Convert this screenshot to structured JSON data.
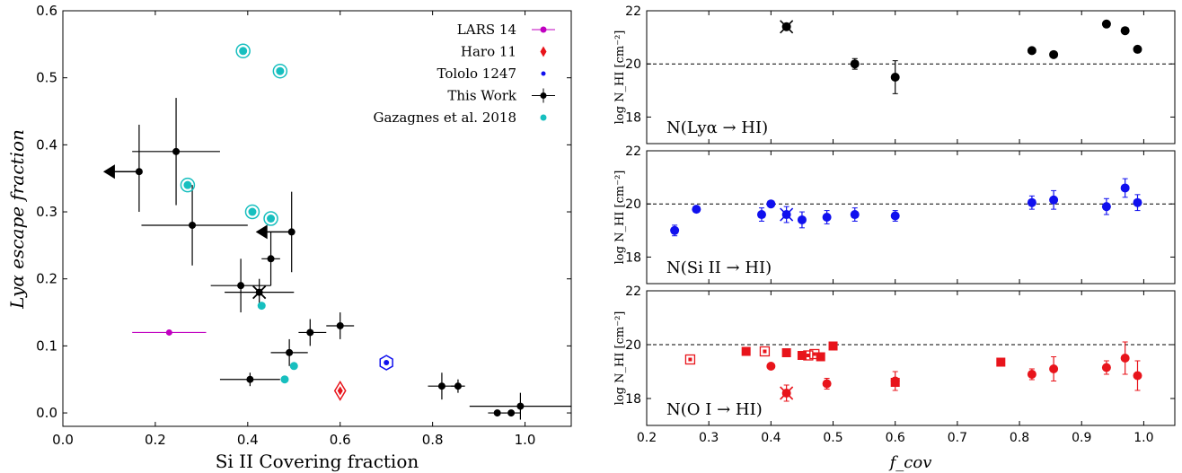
{
  "colors": {
    "black": "#000000",
    "magenta": "#c000c0",
    "red": "#e8141b",
    "blue": "#1010ee",
    "cyan": "#17bfbf"
  },
  "chart_data": [
    {
      "type": "scatter",
      "xlabel": "Si II Covering fraction",
      "ylabel": "Lyα escape fraction",
      "xlim": [
        0.0,
        1.1
      ],
      "ylim": [
        -0.02,
        0.6
      ],
      "xticks": [
        "0.0",
        "0.2",
        "0.4",
        "0.6",
        "0.8",
        "1.0"
      ],
      "yticks": [
        "0.0",
        "0.1",
        "0.2",
        "0.3",
        "0.4",
        "0.5",
        "0.6"
      ],
      "legend_position": "top-right",
      "legend": [
        "LARS 14",
        "Haro 11",
        "Tololo 1247",
        "This Work",
        "Gazagnes et al. 2018"
      ],
      "series": [
        {
          "name": "LARS 14",
          "points": [
            {
              "x": 0.23,
              "y": 0.12,
              "xlo": 0.15,
              "xhi": 0.31
            }
          ]
        },
        {
          "name": "Haro 11",
          "points": [
            {
              "x": 0.6,
              "y": 0.033
            }
          ]
        },
        {
          "name": "Tololo 1247",
          "points": [
            {
              "x": 0.7,
              "y": 0.075
            }
          ]
        },
        {
          "name": "This Work",
          "points": [
            {
              "x": 0.165,
              "y": 0.36,
              "xlo": 0.16,
              "xhi": 0.16,
              "ylo": 0.3,
              "yhi": 0.43,
              "upper_x": true
            },
            {
              "x": 0.245,
              "y": 0.39,
              "xlo": 0.15,
              "xhi": 0.34,
              "ylo": 0.31,
              "yhi": 0.47
            },
            {
              "x": 0.28,
              "y": 0.28,
              "xlo": 0.17,
              "xhi": 0.4,
              "ylo": 0.22,
              "yhi": 0.34
            },
            {
              "x": 0.385,
              "y": 0.19,
              "xlo": 0.32,
              "xhi": 0.45,
              "ylo": 0.15,
              "yhi": 0.23
            },
            {
              "x": 0.425,
              "y": 0.18,
              "xlo": 0.35,
              "xhi": 0.5,
              "ylo": 0.16,
              "yhi": 0.2,
              "cross": true
            },
            {
              "x": 0.45,
              "y": 0.23,
              "xlo": 0.43,
              "xhi": 0.47,
              "ylo": 0.19,
              "yhi": 0.27
            },
            {
              "x": 0.495,
              "y": 0.27,
              "xlo": 0.49,
              "xhi": 0.5,
              "ylo": 0.21,
              "yhi": 0.33,
              "upper_x": true
            },
            {
              "x": 0.49,
              "y": 0.09,
              "xlo": 0.45,
              "xhi": 0.53,
              "ylo": 0.07,
              "yhi": 0.11
            },
            {
              "x": 0.535,
              "y": 0.12,
              "xlo": 0.51,
              "xhi": 0.57,
              "ylo": 0.1,
              "yhi": 0.14
            },
            {
              "x": 0.6,
              "y": 0.13,
              "xlo": 0.57,
              "xhi": 0.63,
              "ylo": 0.11,
              "yhi": 0.15
            },
            {
              "x": 0.405,
              "y": 0.05,
              "xlo": 0.34,
              "xhi": 0.47,
              "ylo": 0.04,
              "yhi": 0.06
            },
            {
              "x": 0.82,
              "y": 0.04,
              "xlo": 0.79,
              "xhi": 0.85,
              "ylo": 0.02,
              "yhi": 0.06
            },
            {
              "x": 0.855,
              "y": 0.04,
              "xlo": 0.84,
              "xhi": 0.87,
              "ylo": 0.03,
              "yhi": 0.05
            },
            {
              "x": 0.94,
              "y": 0.0,
              "xlo": 0.92,
              "xhi": 0.96,
              "ylo": 0.0,
              "yhi": 0.0
            },
            {
              "x": 0.97,
              "y": 0.0,
              "xlo": 0.95,
              "xhi": 0.99,
              "ylo": 0.0,
              "yhi": 0.0
            },
            {
              "x": 0.99,
              "y": 0.01,
              "xlo": 0.88,
              "xhi": 1.1,
              "ylo": -0.01,
              "yhi": 0.03
            }
          ]
        },
        {
          "name": "Gazagnes et al. 2018",
          "points": [
            {
              "x": 0.39,
              "y": 0.54
            },
            {
              "x": 0.47,
              "y": 0.51
            },
            {
              "x": 0.27,
              "y": 0.34
            },
            {
              "x": 0.41,
              "y": 0.3
            },
            {
              "x": 0.45,
              "y": 0.29
            },
            {
              "x": 0.43,
              "y": 0.16
            },
            {
              "x": 0.5,
              "y": 0.07
            },
            {
              "x": 0.48,
              "y": 0.05
            }
          ]
        }
      ]
    },
    {
      "type": "scatter",
      "label": "N(Lyα → HI)",
      "ylabel": "log N_HI [cm^-2]",
      "xlim": [
        0.2,
        1.05
      ],
      "ylim": [
        17.0,
        22.0
      ],
      "yticks": [
        "18",
        "20",
        "22"
      ],
      "reference_line": 20,
      "color": "#000000",
      "points": [
        {
          "x": 0.425,
          "y": 21.4,
          "cross": true
        },
        {
          "x": 0.535,
          "y": 20.0,
          "err": 0.2
        },
        {
          "x": 0.6,
          "y": 19.5,
          "err": 0.62
        },
        {
          "x": 0.82,
          "y": 20.5
        },
        {
          "x": 0.855,
          "y": 20.35
        },
        {
          "x": 0.94,
          "y": 21.5
        },
        {
          "x": 0.97,
          "y": 21.25
        },
        {
          "x": 0.99,
          "y": 20.55
        }
      ]
    },
    {
      "type": "scatter",
      "label": "N(Si II → HI)",
      "ylabel": "log N_HI [cm^-2]",
      "xlim": [
        0.2,
        1.05
      ],
      "ylim": [
        17.0,
        22.0
      ],
      "yticks": [
        "18",
        "20",
        "22"
      ],
      "reference_line": 20,
      "color": "#1010ee",
      "points": [
        {
          "x": 0.245,
          "y": 19.0,
          "err": 0.2
        },
        {
          "x": 0.28,
          "y": 19.8,
          "err": 0.1
        },
        {
          "x": 0.385,
          "y": 19.6,
          "err": 0.25
        },
        {
          "x": 0.4,
          "y": 20.0,
          "err": 0.1
        },
        {
          "x": 0.425,
          "y": 19.6,
          "err": 0.3,
          "cross": true
        },
        {
          "x": 0.45,
          "y": 19.4,
          "err": 0.3
        },
        {
          "x": 0.49,
          "y": 19.5,
          "err": 0.25
        },
        {
          "x": 0.535,
          "y": 19.6,
          "err": 0.25
        },
        {
          "x": 0.6,
          "y": 19.55,
          "err": 0.2
        },
        {
          "x": 0.82,
          "y": 20.05,
          "err": 0.25
        },
        {
          "x": 0.855,
          "y": 20.15,
          "err": 0.35
        },
        {
          "x": 0.94,
          "y": 19.9,
          "err": 0.3
        },
        {
          "x": 0.97,
          "y": 20.6,
          "err": 0.35
        },
        {
          "x": 0.99,
          "y": 20.05,
          "err": 0.3
        }
      ]
    },
    {
      "type": "scatter",
      "label": "N(O I → HI)",
      "xlabel": "f_cov",
      "ylabel": "log N_HI [cm^-2]",
      "xlim": [
        0.2,
        1.05
      ],
      "ylim": [
        17.0,
        22.0
      ],
      "xticks": [
        "0.2",
        "0.3",
        "0.4",
        "0.5",
        "0.6",
        "0.7",
        "0.8",
        "0.9",
        "1.0"
      ],
      "yticks": [
        "18",
        "20",
        "22"
      ],
      "reference_line": 20,
      "color": "#e8141b",
      "circles": [
        {
          "x": 0.4,
          "y": 19.2
        },
        {
          "x": 0.425,
          "y": 18.2,
          "err": 0.3,
          "cross": true
        },
        {
          "x": 0.49,
          "y": 18.55,
          "err": 0.2
        },
        {
          "x": 0.6,
          "y": 18.65,
          "err": 0.35
        },
        {
          "x": 0.82,
          "y": 18.9,
          "err": 0.2
        },
        {
          "x": 0.855,
          "y": 19.1,
          "err": 0.45
        },
        {
          "x": 0.94,
          "y": 19.15,
          "err": 0.25
        },
        {
          "x": 0.97,
          "y": 19.5,
          "err": 0.6
        },
        {
          "x": 0.99,
          "y": 18.85,
          "err": 0.55
        }
      ],
      "squares_filled": [
        {
          "x": 0.36,
          "y": 19.75
        },
        {
          "x": 0.425,
          "y": 19.7
        },
        {
          "x": 0.45,
          "y": 19.6
        },
        {
          "x": 0.48,
          "y": 19.55
        },
        {
          "x": 0.5,
          "y": 19.95
        },
        {
          "x": 0.6,
          "y": 18.6
        },
        {
          "x": 0.77,
          "y": 19.35
        }
      ],
      "squares_open": [
        {
          "x": 0.27,
          "y": 19.45
        },
        {
          "x": 0.39,
          "y": 19.75
        },
        {
          "x": 0.46,
          "y": 19.6
        },
        {
          "x": 0.47,
          "y": 19.65
        }
      ]
    }
  ]
}
